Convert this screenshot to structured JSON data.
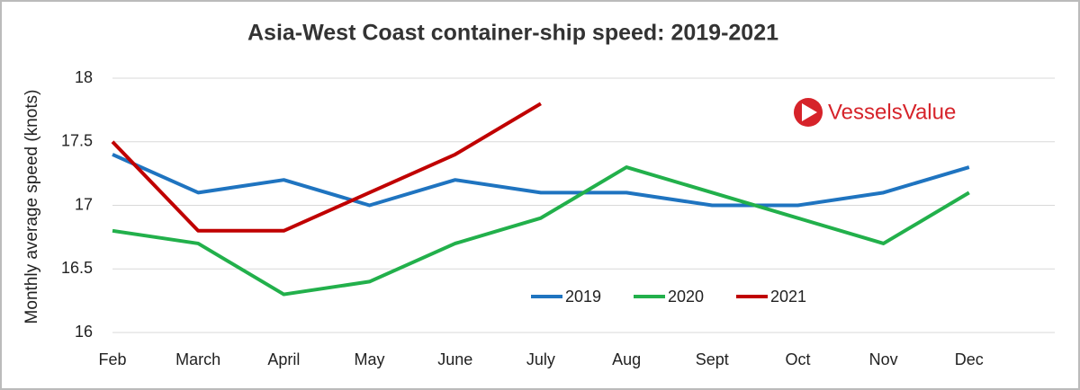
{
  "chart_data": {
    "type": "line",
    "title": "Asia-West Coast container-ship speed: 2019-2021",
    "y_label": "Monthly average speed (knots)",
    "logo_text": "VesselsValue",
    "categories": [
      "Feb",
      "March",
      "April",
      "May",
      "June",
      "July",
      "Aug",
      "Sept",
      "Oct",
      "Nov",
      "Dec",
      null
    ],
    "series": [
      {
        "name": "2019",
        "color": "#1f74c0",
        "values": [
          17.4,
          17.1,
          17.2,
          17.0,
          17.2,
          17.1,
          17.1,
          17.0,
          17.0,
          17.1,
          17.3,
          null
        ]
      },
      {
        "name": "2020",
        "color": "#22b04b",
        "values": [
          16.8,
          16.7,
          16.3,
          16.4,
          16.7,
          16.9,
          17.3,
          17.1,
          16.9,
          16.7,
          17.1,
          null
        ]
      },
      {
        "name": "2021",
        "color": "#c00000",
        "values": [
          17.5,
          16.8,
          16.8,
          17.1,
          17.4,
          17.8,
          null,
          null,
          null,
          null,
          null,
          null
        ]
      }
    ],
    "ylim": [
      16,
      18
    ],
    "yticks": [
      16,
      16.5,
      17,
      17.5,
      18
    ],
    "grid": true,
    "legend": "bottom"
  }
}
